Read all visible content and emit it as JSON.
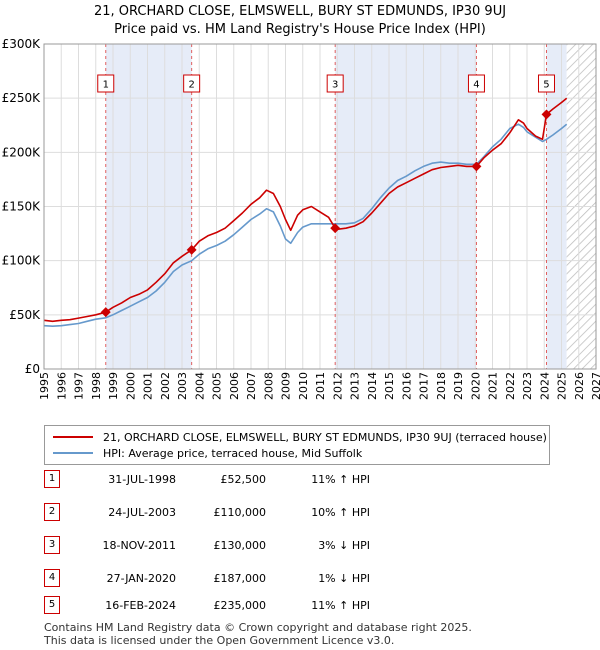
{
  "title_line1": "21, ORCHARD CLOSE, ELMSWELL, BURY ST EDMUNDS, IP30 9UJ",
  "title_line2": "Price paid vs. HM Land Registry's House Price Index (HPI)",
  "colors": {
    "property": "#cc0000",
    "hpi": "#6699cc",
    "shade": "#e6ecf8",
    "marker_line": "#e06060"
  },
  "chart_data": {
    "type": "line",
    "xlim": [
      1995,
      2027
    ],
    "ylim": [
      0,
      300000
    ],
    "x_ticks": [
      "1995",
      "1996",
      "1997",
      "1998",
      "1999",
      "2000",
      "2001",
      "2002",
      "2003",
      "2004",
      "2005",
      "2006",
      "2007",
      "2008",
      "2009",
      "2010",
      "2011",
      "2012",
      "2013",
      "2014",
      "2015",
      "2016",
      "2017",
      "2018",
      "2019",
      "2020",
      "2021",
      "2022",
      "2023",
      "2024",
      "2025",
      "2026",
      "2027"
    ],
    "y_ticks": [
      {
        "value": 0,
        "label": "£0"
      },
      {
        "value": 50000,
        "label": "£50K"
      },
      {
        "value": 100000,
        "label": "£100K"
      },
      {
        "value": 150000,
        "label": "£150K"
      },
      {
        "value": 200000,
        "label": "£200K"
      },
      {
        "value": 250000,
        "label": "£250K"
      },
      {
        "value": 300000,
        "label": "£300K"
      }
    ],
    "shaded_periods": [
      [
        1998.58,
        2003.56
      ],
      [
        2011.88,
        2020.07
      ],
      [
        2024.13,
        2025.3
      ]
    ],
    "forecast_hatch_from": 2025.3,
    "series": [
      {
        "name": "21, ORCHARD CLOSE, ELMSWELL, BURY ST EDMUNDS, IP30 9UJ (terraced house)",
        "color": "#cc0000",
        "x": [
          1995,
          1995.5,
          1996,
          1996.5,
          1997,
          1997.5,
          1998,
          1998.58,
          1999,
          1999.5,
          2000,
          2000.5,
          2001,
          2001.5,
          2002,
          2002.5,
          2003,
          2003.56,
          2004,
          2004.5,
          2005,
          2005.5,
          2006,
          2006.5,
          2007,
          2007.5,
          2007.9,
          2008.3,
          2008.7,
          2009.0,
          2009.3,
          2009.7,
          2010,
          2010.5,
          2011,
          2011.5,
          2011.88,
          2012,
          2012.5,
          2013,
          2013.5,
          2014,
          2014.5,
          2015,
          2015.5,
          2016,
          2016.5,
          2017,
          2017.5,
          2018,
          2018.5,
          2019,
          2019.5,
          2020.07,
          2020.5,
          2021,
          2021.5,
          2022,
          2022.5,
          2022.8,
          2023,
          2023.5,
          2023.9,
          2024.13,
          2024.5,
          2025,
          2025.3
        ],
        "values": [
          45000,
          44000,
          45000,
          45500,
          47000,
          48500,
          50000,
          52500,
          57000,
          61000,
          66000,
          69000,
          73000,
          80000,
          88000,
          98000,
          104000,
          110000,
          118000,
          123000,
          126000,
          130000,
          137000,
          144000,
          152000,
          158000,
          165000,
          162000,
          150000,
          138000,
          128000,
          142000,
          147000,
          150000,
          145000,
          140000,
          130000,
          129000,
          130000,
          132000,
          136000,
          144000,
          153000,
          162000,
          168000,
          172000,
          176000,
          180000,
          184000,
          186000,
          187000,
          188000,
          187000,
          187000,
          195000,
          202000,
          208000,
          218000,
          230000,
          227000,
          222000,
          215000,
          212000,
          235000,
          240000,
          246000,
          250000
        ]
      },
      {
        "name": "HPI: Average price, terraced house, Mid Suffolk",
        "color": "#6699cc",
        "x": [
          1995,
          1995.5,
          1996,
          1996.5,
          1997,
          1997.5,
          1998,
          1998.58,
          1999,
          1999.5,
          2000,
          2000.5,
          2001,
          2001.5,
          2002,
          2002.5,
          2003,
          2003.56,
          2004,
          2004.5,
          2005,
          2005.5,
          2006,
          2006.5,
          2007,
          2007.5,
          2007.9,
          2008.3,
          2008.7,
          2009.0,
          2009.3,
          2009.7,
          2010,
          2010.5,
          2011,
          2011.5,
          2011.88,
          2012,
          2012.5,
          2013,
          2013.5,
          2014,
          2014.5,
          2015,
          2015.5,
          2016,
          2016.5,
          2017,
          2017.5,
          2018,
          2018.5,
          2019,
          2019.5,
          2020.07,
          2020.5,
          2021,
          2021.5,
          2022,
          2022.5,
          2022.8,
          2023,
          2023.5,
          2023.9,
          2024.13,
          2024.5,
          2025,
          2025.3
        ],
        "values": [
          40000,
          39500,
          40000,
          41000,
          42000,
          44000,
          46000,
          47300,
          50000,
          54000,
          58000,
          62000,
          66000,
          72000,
          80000,
          90000,
          96000,
          100000,
          106000,
          111000,
          114000,
          118000,
          124000,
          131000,
          138000,
          143000,
          148000,
          145000,
          132000,
          120000,
          116000,
          126000,
          131000,
          134000,
          134000,
          134000,
          134000,
          134000,
          134000,
          135000,
          139000,
          148000,
          158000,
          167000,
          174000,
          178000,
          183000,
          187000,
          190000,
          191000,
          190000,
          190000,
          189000,
          189000,
          196000,
          205000,
          212000,
          222000,
          226000,
          223000,
          219000,
          214000,
          210000,
          212000,
          216000,
          222000,
          226000
        ]
      }
    ],
    "sales": [
      {
        "n": "1",
        "x": 1998.58,
        "value": 52500
      },
      {
        "n": "2",
        "x": 2003.56,
        "value": 110000
      },
      {
        "n": "3",
        "x": 2011.88,
        "value": 130000
      },
      {
        "n": "4",
        "x": 2020.07,
        "value": 187000
      },
      {
        "n": "5",
        "x": 2024.13,
        "value": 235000
      }
    ]
  },
  "legend": [
    {
      "label": "21, ORCHARD CLOSE, ELMSWELL, BURY ST EDMUNDS, IP30 9UJ (terraced house)"
    },
    {
      "label": "HPI: Average price, terraced house, Mid Suffolk"
    }
  ],
  "sales_table": [
    {
      "n": "1",
      "date": "31-JUL-1998",
      "price": "£52,500",
      "hpi": "11% ↑ HPI"
    },
    {
      "n": "2",
      "date": "24-JUL-2003",
      "price": "£110,000",
      "hpi": "10% ↑ HPI"
    },
    {
      "n": "3",
      "date": "18-NOV-2011",
      "price": "£130,000",
      "hpi": "3% ↓ HPI"
    },
    {
      "n": "4",
      "date": "27-JAN-2020",
      "price": "£187,000",
      "hpi": "1% ↓ HPI"
    },
    {
      "n": "5",
      "date": "16-FEB-2024",
      "price": "£235,000",
      "hpi": "11% ↑ HPI"
    }
  ],
  "footer_line1": "Contains HM Land Registry data © Crown copyright and database right 2025.",
  "footer_line2": "This data is licensed under the Open Government Licence v3.0."
}
